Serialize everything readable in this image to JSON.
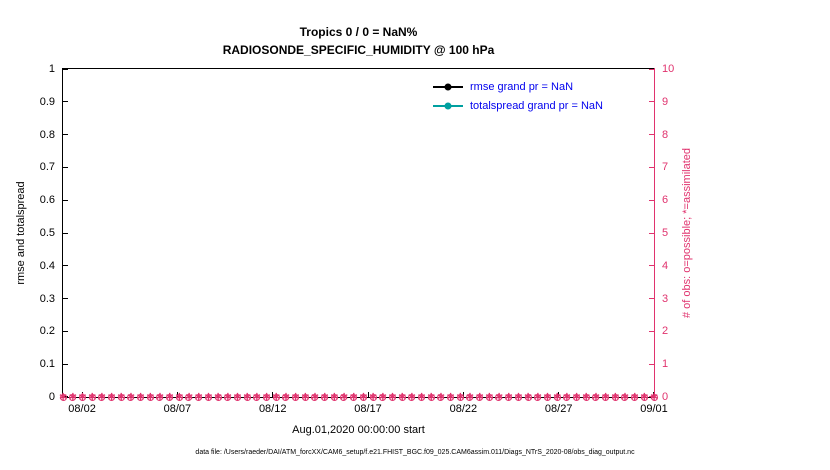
{
  "figure": {
    "title": "Tropics 0 / 0 = NaN%",
    "subtitle": "RADIOSONDE_SPECIFIC_HUMIDITY @ 100 hPa",
    "xlabel": "Aug.01,2020 00:00:00 start",
    "ylabel_left": "rmse and totalspread",
    "ylabel_right": "# of obs: o=possible; *=assimilated",
    "caption": "data file: /Users/raeder/DAI/ATM_forcXX/CAM6_setup/f.e21.FHIST_BGC.f09_025.CAM6assim.011/Diags_NTrS_2020-08/obs_diag_output.nc",
    "colors": {
      "obs_axis": "#E0336E",
      "legend_text": "#0000EE",
      "rmse": "#000000",
      "totalspread": "#00A0A0"
    }
  },
  "legend": {
    "items": [
      {
        "label": "rmse grand pr = NaN",
        "color": "#000000"
      },
      {
        "label": "totalspread grand pr = NaN",
        "color": "#00A0A0"
      }
    ]
  },
  "chart_data": {
    "type": "line",
    "title": "Tropics 0 / 0 = NaN%",
    "subtitle": "RADIOSONDE_SPECIFIC_HUMIDITY @ 100 hPa",
    "xlabel": "Aug.01,2020 00:00:00 start",
    "x_axis": {
      "range_days": [
        0,
        31
      ],
      "ticks": [
        {
          "label": "08/02",
          "day": 1
        },
        {
          "label": "08/07",
          "day": 6
        },
        {
          "label": "08/12",
          "day": 11
        },
        {
          "label": "08/17",
          "day": 16
        },
        {
          "label": "08/22",
          "day": 21
        },
        {
          "label": "08/27",
          "day": 26
        },
        {
          "label": "09/01",
          "day": 31
        }
      ]
    },
    "y_axis_left": {
      "label": "rmse and totalspread",
      "range": [
        0,
        1
      ],
      "ticks": [
        0,
        0.1,
        0.2,
        0.3,
        0.4,
        0.5,
        0.6,
        0.7,
        0.8,
        0.9,
        1
      ]
    },
    "y_axis_right": {
      "label": "# of obs: o=possible; *=assimilated",
      "range": [
        0,
        10
      ],
      "ticks": [
        0,
        1,
        2,
        3,
        4,
        5,
        6,
        7,
        8,
        9,
        10
      ]
    },
    "series": [
      {
        "name": "rmse",
        "grand_mean": "NaN",
        "values": []
      },
      {
        "name": "totalspread",
        "grand_mean": "NaN",
        "values": []
      }
    ],
    "obs_counts": {
      "possible_marker": "o",
      "assimilated_marker": "∗",
      "count": 62,
      "possible_value": 0,
      "assimilated_value": 0
    },
    "grid": false,
    "legend_position": "top-right-inside"
  }
}
